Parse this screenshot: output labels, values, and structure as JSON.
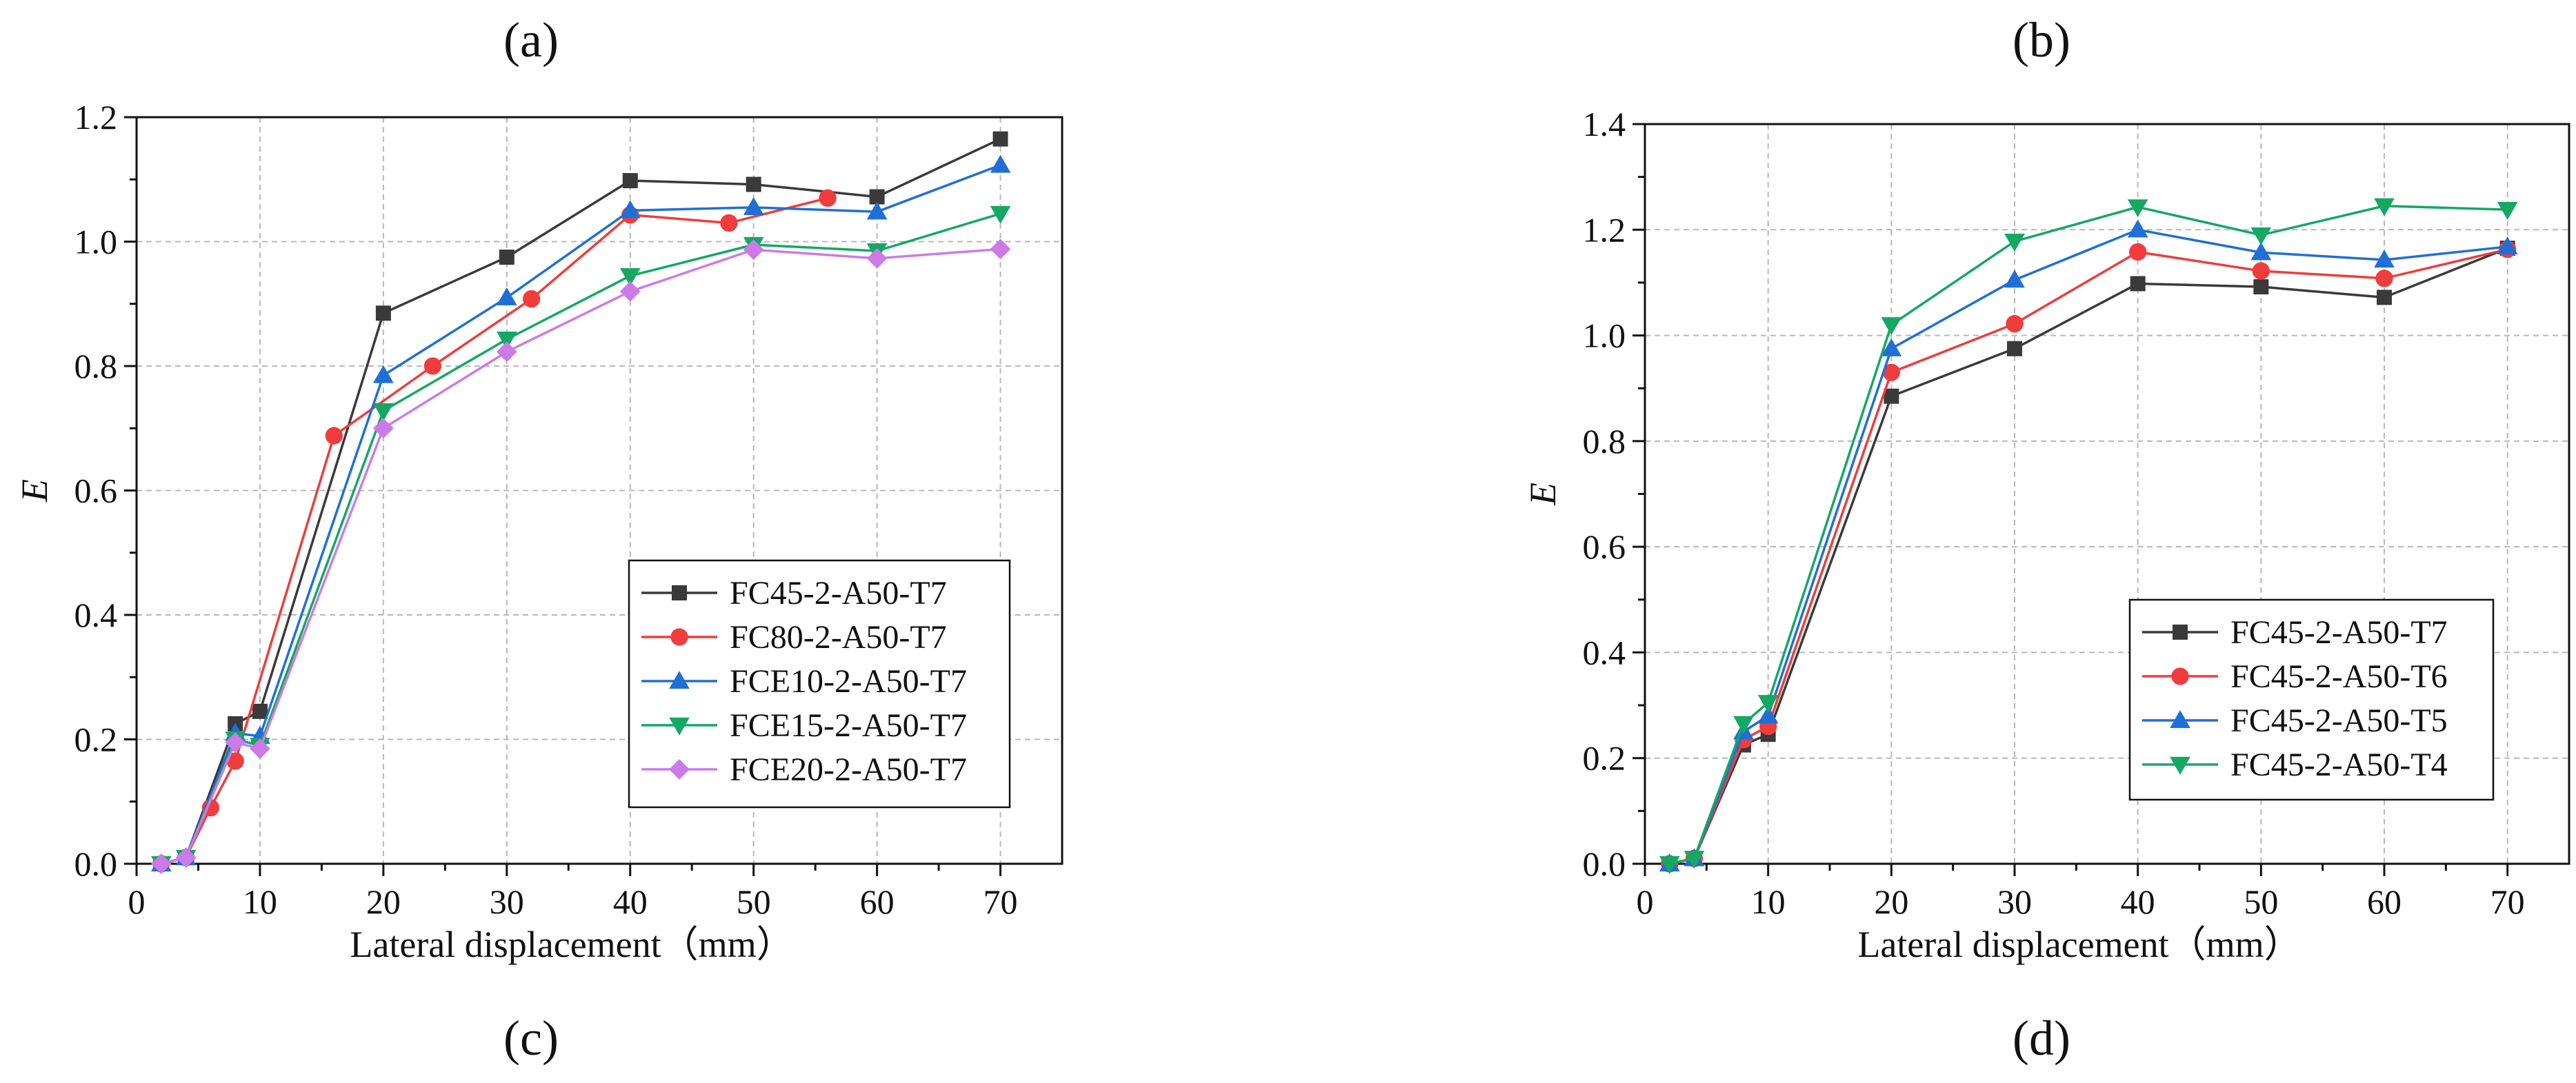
{
  "figure": {
    "panel_labels": [
      "(a)",
      "(b)",
      "(c)",
      "(d)"
    ]
  },
  "chart_data": [
    {
      "type": "line",
      "id": "left",
      "xlabel": "Lateral displacement（mm）",
      "ylabel": "E",
      "xlim": [
        0,
        75
      ],
      "ylim": [
        0,
        1.2
      ],
      "xticks": [
        0,
        10,
        20,
        30,
        40,
        50,
        60,
        70
      ],
      "xtick_labels": [
        "0",
        "10",
        "20",
        "30",
        "40",
        "50",
        "60",
        "70"
      ],
      "yticks": [
        0.0,
        0.2,
        0.4,
        0.6,
        0.8,
        1.0,
        1.2
      ],
      "ytick_labels": [
        "0.0",
        "0.2",
        "0.4",
        "0.6",
        "0.8",
        "1.0",
        "1.2"
      ],
      "grid": true,
      "legend_position": "lower-right",
      "series": [
        {
          "name": "FC45-2-A50-T7",
          "color": "#3a3a3a",
          "marker": "square",
          "x": [
            2,
            4,
            8,
            10,
            20,
            30,
            40,
            50,
            60,
            70
          ],
          "values": [
            0.0,
            0.01,
            0.225,
            0.245,
            0.885,
            0.975,
            1.098,
            1.092,
            1.072,
            1.165
          ]
        },
        {
          "name": "FC80-2-A50-T7",
          "color": "#f03c3c",
          "marker": "circle",
          "x": [
            2,
            4,
            6,
            8,
            16,
            24,
            32,
            40,
            48,
            56
          ],
          "values": [
            0.0,
            0.01,
            0.09,
            0.165,
            0.688,
            0.8,
            0.908,
            1.043,
            1.03,
            1.07
          ]
        },
        {
          "name": "FCE10-2-A50-T7",
          "color": "#1f6fd6",
          "marker": "triangle-up",
          "x": [
            2,
            4,
            8,
            10,
            20,
            30,
            40,
            50,
            60,
            70
          ],
          "values": [
            0.0,
            0.01,
            0.21,
            0.205,
            0.785,
            0.91,
            1.05,
            1.055,
            1.048,
            1.123
          ]
        },
        {
          "name": "FCE15-2-A50-T7",
          "color": "#14a864",
          "marker": "triangle-down",
          "x": [
            2,
            4,
            8,
            10,
            20,
            30,
            40,
            50,
            60,
            70
          ],
          "values": [
            0.0,
            0.01,
            0.2,
            0.19,
            0.728,
            0.843,
            0.945,
            0.995,
            0.985,
            1.045
          ]
        },
        {
          "name": "FCE20-2-A50-T7",
          "color": "#cc7ae8",
          "marker": "diamond",
          "x": [
            2,
            4,
            8,
            10,
            20,
            30,
            40,
            50,
            60,
            70
          ],
          "values": [
            0.0,
            0.01,
            0.195,
            0.185,
            0.7,
            0.823,
            0.92,
            0.987,
            0.973,
            0.988
          ]
        }
      ]
    },
    {
      "type": "line",
      "id": "right",
      "xlabel": "Lateral displacement（mm）",
      "ylabel": "E",
      "xlim": [
        0,
        75
      ],
      "ylim": [
        0,
        1.4
      ],
      "xticks": [
        0,
        10,
        20,
        30,
        40,
        50,
        60,
        70
      ],
      "xtick_labels": [
        "0",
        "10",
        "20",
        "30",
        "40",
        "50",
        "60",
        "70"
      ],
      "yticks": [
        0.0,
        0.2,
        0.4,
        0.6,
        0.8,
        1.0,
        1.2,
        1.4
      ],
      "ytick_labels": [
        "0.0",
        "0.2",
        "0.4",
        "0.6",
        "0.8",
        "1.0",
        "1.2",
        "1.4"
      ],
      "grid": true,
      "legend_position": "lower-right",
      "series": [
        {
          "name": "FC45-2-A50-T7",
          "color": "#3a3a3a",
          "marker": "square",
          "x": [
            2,
            4,
            8,
            10,
            20,
            30,
            40,
            50,
            60,
            70
          ],
          "values": [
            0.0,
            0.01,
            0.225,
            0.245,
            0.885,
            0.975,
            1.098,
            1.092,
            1.072,
            1.165
          ]
        },
        {
          "name": "FC45-2-A50-T6",
          "color": "#f03c3c",
          "marker": "circle",
          "x": [
            2,
            4,
            8,
            10,
            20,
            30,
            40,
            50,
            60,
            70
          ],
          "values": [
            0.0,
            0.01,
            0.235,
            0.26,
            0.93,
            1.022,
            1.158,
            1.122,
            1.108,
            1.163
          ]
        },
        {
          "name": "FC45-2-A50-T5",
          "color": "#1f6fd6",
          "marker": "triangle-up",
          "x": [
            2,
            4,
            8,
            10,
            20,
            30,
            40,
            50,
            60,
            70
          ],
          "values": [
            0.0,
            0.01,
            0.25,
            0.28,
            0.975,
            1.105,
            1.2,
            1.157,
            1.143,
            1.168
          ]
        },
        {
          "name": "FC45-2-A50-T4",
          "color": "#14a864",
          "marker": "triangle-down",
          "x": [
            2,
            4,
            8,
            10,
            20,
            30,
            40,
            50,
            60,
            70
          ],
          "values": [
            0.0,
            0.01,
            0.265,
            0.305,
            1.02,
            1.178,
            1.243,
            1.19,
            1.245,
            1.238
          ]
        }
      ]
    }
  ]
}
